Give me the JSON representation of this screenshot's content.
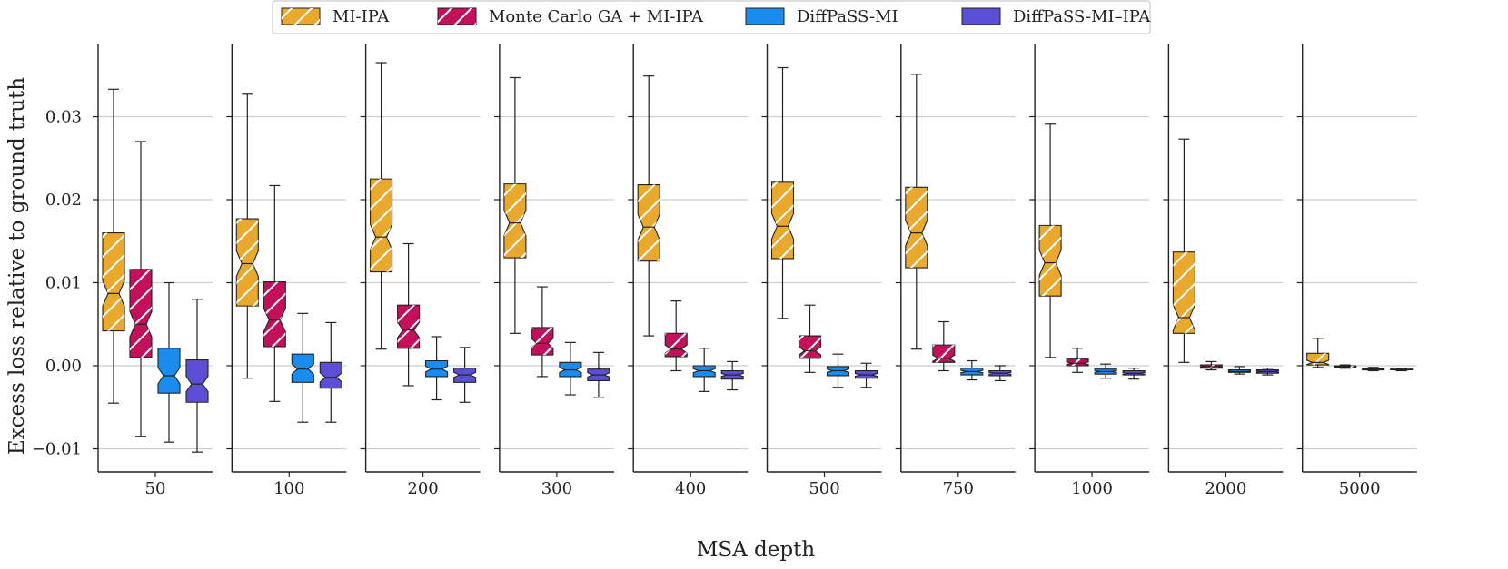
{
  "chart_data": {
    "type": "boxplot",
    "xlabel": "MSA depth",
    "ylabel": "Excess loss relative to ground truth",
    "ylim": [
      -0.013,
      0.039
    ],
    "y_ticks": [
      -0.01,
      0.0,
      0.01,
      0.02,
      0.03
    ],
    "y_tick_labels": [
      "−0.01",
      "0.00",
      "0.01",
      "0.02",
      "0.03"
    ],
    "grid": true,
    "notched": true,
    "legend_position": "top-center",
    "series": [
      {
        "name": "MI-IPA",
        "color": "#E8A92E",
        "hatch": true
      },
      {
        "name": "Monte Carlo GA + MI-IPA",
        "color": "#C2105A",
        "hatch": true
      },
      {
        "name": "DiffPaSS-MI",
        "color": "#1A8CF0",
        "hatch": false
      },
      {
        "name": "DiffPaSS-MI–IPA",
        "color": "#5B4FD6",
        "hatch": false
      }
    ],
    "groups": [
      {
        "label": "50",
        "boxes": [
          {
            "whisker_low": -0.0045,
            "q1": 0.0042,
            "median": 0.0087,
            "q3": 0.016,
            "whisker_high": 0.0333
          },
          {
            "whisker_low": -0.0085,
            "q1": 0.001,
            "median": 0.005,
            "q3": 0.0116,
            "whisker_high": 0.027
          },
          {
            "whisker_low": -0.0092,
            "q1": -0.0033,
            "median": -0.0012,
            "q3": 0.0021,
            "whisker_high": 0.01
          },
          {
            "whisker_low": -0.0104,
            "q1": -0.0044,
            "median": -0.0022,
            "q3": 0.0007,
            "whisker_high": 0.008
          }
        ]
      },
      {
        "label": "100",
        "boxes": [
          {
            "whisker_low": -0.0015,
            "q1": 0.0072,
            "median": 0.0123,
            "q3": 0.0177,
            "whisker_high": 0.0327
          },
          {
            "whisker_low": -0.0043,
            "q1": 0.0023,
            "median": 0.0055,
            "q3": 0.0101,
            "whisker_high": 0.0217
          },
          {
            "whisker_low": -0.0068,
            "q1": -0.002,
            "median": -0.0004,
            "q3": 0.0014,
            "whisker_high": 0.0063
          },
          {
            "whisker_low": -0.0068,
            "q1": -0.0027,
            "median": -0.0014,
            "q3": 0.0004,
            "whisker_high": 0.0052
          }
        ]
      },
      {
        "label": "200",
        "boxes": [
          {
            "whisker_low": 0.002,
            "q1": 0.0113,
            "median": 0.0155,
            "q3": 0.0225,
            "whisker_high": 0.0365
          },
          {
            "whisker_low": -0.0024,
            "q1": 0.0021,
            "median": 0.0043,
            "q3": 0.0073,
            "whisker_high": 0.0147
          },
          {
            "whisker_low": -0.0041,
            "q1": -0.0013,
            "median": -0.0004,
            "q3": 0.0006,
            "whisker_high": 0.0035
          },
          {
            "whisker_low": -0.0044,
            "q1": -0.002,
            "median": -0.0011,
            "q3": -0.0003,
            "whisker_high": 0.0022
          }
        ]
      },
      {
        "label": "300",
        "boxes": [
          {
            "whisker_low": 0.0039,
            "q1": 0.013,
            "median": 0.0172,
            "q3": 0.0219,
            "whisker_high": 0.0347
          },
          {
            "whisker_low": -0.0013,
            "q1": 0.0013,
            "median": 0.0027,
            "q3": 0.0046,
            "whisker_high": 0.0095
          },
          {
            "whisker_low": -0.0035,
            "q1": -0.0013,
            "median": -0.0005,
            "q3": 0.0004,
            "whisker_high": 0.0028
          },
          {
            "whisker_low": -0.0038,
            "q1": -0.0018,
            "median": -0.0011,
            "q3": -0.0004,
            "whisker_high": 0.0016
          }
        ]
      },
      {
        "label": "400",
        "boxes": [
          {
            "whisker_low": 0.0036,
            "q1": 0.0126,
            "median": 0.0167,
            "q3": 0.0218,
            "whisker_high": 0.0349
          },
          {
            "whisker_low": -0.0006,
            "q1": 0.0011,
            "median": 0.002,
            "q3": 0.0039,
            "whisker_high": 0.0078
          },
          {
            "whisker_low": -0.0031,
            "q1": -0.0013,
            "median": -0.0006,
            "q3": 0.0,
            "whisker_high": 0.0021
          },
          {
            "whisker_low": -0.0029,
            "q1": -0.0016,
            "median": -0.0011,
            "q3": -0.0006,
            "whisker_high": 0.0005
          }
        ]
      },
      {
        "label": "500",
        "boxes": [
          {
            "whisker_low": 0.0057,
            "q1": 0.0129,
            "median": 0.0168,
            "q3": 0.0221,
            "whisker_high": 0.0359
          },
          {
            "whisker_low": -0.0008,
            "q1": 0.0009,
            "median": 0.0018,
            "q3": 0.0036,
            "whisker_high": 0.0073
          },
          {
            "whisker_low": -0.0026,
            "q1": -0.0012,
            "median": -0.0006,
            "q3": -0.0001,
            "whisker_high": 0.0014
          },
          {
            "whisker_low": -0.0026,
            "q1": -0.0015,
            "median": -0.0011,
            "q3": -0.0006,
            "whisker_high": 0.0003
          }
        ]
      },
      {
        "label": "750",
        "boxes": [
          {
            "whisker_low": 0.002,
            "q1": 0.0118,
            "median": 0.016,
            "q3": 0.0215,
            "whisker_high": 0.0351
          },
          {
            "whisker_low": -0.0006,
            "q1": 0.0004,
            "median": 0.0009,
            "q3": 0.0025,
            "whisker_high": 0.0053
          },
          {
            "whisker_low": -0.0017,
            "q1": -0.0011,
            "median": -0.0007,
            "q3": -0.0003,
            "whisker_high": 0.0006
          },
          {
            "whisker_low": -0.0018,
            "q1": -0.0012,
            "median": -0.0009,
            "q3": -0.0006,
            "whisker_high": 0.0
          }
        ]
      },
      {
        "label": "1000",
        "boxes": [
          {
            "whisker_low": 0.001,
            "q1": 0.0084,
            "median": 0.0124,
            "q3": 0.0169,
            "whisker_high": 0.0291
          },
          {
            "whisker_low": -0.0008,
            "q1": 0.0,
            "median": 0.0003,
            "q3": 0.0008,
            "whisker_high": 0.0021
          },
          {
            "whisker_low": -0.0015,
            "q1": -0.001,
            "median": -0.0007,
            "q3": -0.0004,
            "whisker_high": 0.0002
          },
          {
            "whisker_low": -0.0016,
            "q1": -0.0011,
            "median": -0.0009,
            "q3": -0.0006,
            "whisker_high": -0.0003
          }
        ]
      },
      {
        "label": "2000",
        "boxes": [
          {
            "whisker_low": 0.0004,
            "q1": 0.0039,
            "median": 0.0058,
            "q3": 0.0137,
            "whisker_high": 0.0273
          },
          {
            "whisker_low": -0.0005,
            "q1": -0.0003,
            "median": -0.0001,
            "q3": 0.0001,
            "whisker_high": 0.0005
          },
          {
            "whisker_low": -0.001,
            "q1": -0.0008,
            "median": -0.0007,
            "q3": -0.0005,
            "whisker_high": -0.0001
          },
          {
            "whisker_low": -0.0011,
            "q1": -0.0009,
            "median": -0.0007,
            "q3": -0.0005,
            "whisker_high": -0.0003
          }
        ]
      },
      {
        "label": "5000",
        "boxes": [
          {
            "whisker_low": -0.0002,
            "q1": 0.0001,
            "median": 0.0004,
            "q3": 0.0015,
            "whisker_high": 0.0033
          },
          {
            "whisker_low": -0.0003,
            "q1": -0.0002,
            "median": -0.0001,
            "q3": 0.0,
            "whisker_high": 0.0001
          },
          {
            "whisker_low": -0.0006,
            "q1": -0.0005,
            "median": -0.0004,
            "q3": -0.0003,
            "whisker_high": -0.0002
          },
          {
            "whisker_low": -0.0006,
            "q1": -0.0005,
            "median": -0.0005,
            "q3": -0.0004,
            "whisker_high": -0.0003
          }
        ]
      }
    ]
  }
}
